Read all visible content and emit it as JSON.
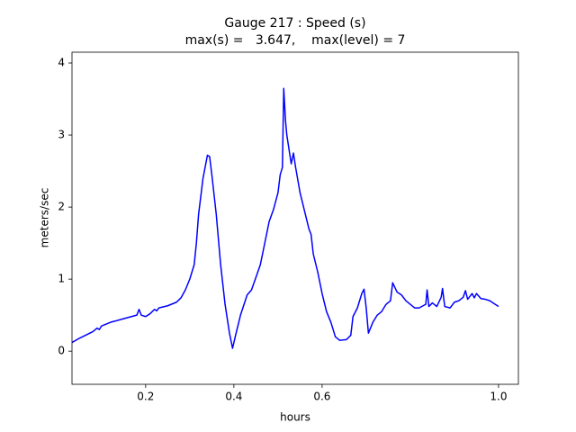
{
  "chart_data": {
    "type": "line",
    "title": "Gauge 217 : Speed (s)",
    "subtitle": "max(s) =   3.647,    max(level) = 7",
    "x_label": "hours",
    "y_label": "meters/sec",
    "xlim": [
      0.033,
      1.045
    ],
    "ylim": [
      -0.46,
      4.15
    ],
    "xticks": [
      0.2,
      0.4,
      0.6,
      {
        "value": 1,
        "label": "1.0"
      }
    ],
    "yticks": [
      0,
      1,
      2,
      3,
      4
    ],
    "series": [
      {
        "name": "s",
        "color": "#0000ff",
        "x": [
          0.033,
          0.05,
          0.08,
          0.09,
          0.095,
          0.1,
          0.12,
          0.15,
          0.18,
          0.185,
          0.19,
          0.2,
          0.21,
          0.22,
          0.225,
          0.23,
          0.25,
          0.27,
          0.28,
          0.29,
          0.3,
          0.31,
          0.315,
          0.32,
          0.33,
          0.34,
          0.345,
          0.35,
          0.36,
          0.37,
          0.38,
          0.39,
          0.397,
          0.405,
          0.415,
          0.43,
          0.44,
          0.46,
          0.47,
          0.48,
          0.49,
          0.5,
          0.505,
          0.51,
          0.513,
          0.517,
          0.52,
          0.53,
          0.535,
          0.54,
          0.55,
          0.56,
          0.57,
          0.575,
          0.58,
          0.59,
          0.6,
          0.61,
          0.62,
          0.63,
          0.64,
          0.655,
          0.665,
          0.67,
          0.68,
          0.69,
          0.695,
          0.7,
          0.705,
          0.715,
          0.725,
          0.735,
          0.745,
          0.755,
          0.76,
          0.77,
          0.78,
          0.79,
          0.8,
          0.81,
          0.82,
          0.835,
          0.838,
          0.842,
          0.85,
          0.86,
          0.87,
          0.873,
          0.878,
          0.89,
          0.9,
          0.91,
          0.92,
          0.925,
          0.93,
          0.94,
          0.945,
          0.95,
          0.96,
          0.97,
          0.98,
          0.99,
          1.0
        ],
        "values": [
          0.12,
          0.18,
          0.27,
          0.32,
          0.3,
          0.35,
          0.4,
          0.45,
          0.5,
          0.58,
          0.5,
          0.48,
          0.52,
          0.58,
          0.56,
          0.6,
          0.63,
          0.68,
          0.74,
          0.85,
          1.0,
          1.2,
          1.5,
          1.9,
          2.4,
          2.72,
          2.7,
          2.45,
          1.9,
          1.2,
          0.65,
          0.25,
          0.04,
          0.25,
          0.5,
          0.78,
          0.85,
          1.2,
          1.5,
          1.8,
          1.97,
          2.2,
          2.45,
          2.55,
          3.647,
          3.2,
          3.0,
          2.6,
          2.75,
          2.55,
          2.2,
          1.95,
          1.7,
          1.62,
          1.35,
          1.1,
          0.8,
          0.55,
          0.4,
          0.2,
          0.15,
          0.16,
          0.22,
          0.48,
          0.6,
          0.8,
          0.86,
          0.6,
          0.25,
          0.4,
          0.5,
          0.55,
          0.65,
          0.7,
          0.95,
          0.82,
          0.78,
          0.7,
          0.65,
          0.6,
          0.6,
          0.65,
          0.85,
          0.62,
          0.67,
          0.62,
          0.75,
          0.87,
          0.62,
          0.6,
          0.68,
          0.7,
          0.75,
          0.84,
          0.72,
          0.8,
          0.74,
          0.8,
          0.73,
          0.72,
          0.7,
          0.66,
          0.62
        ]
      }
    ]
  }
}
